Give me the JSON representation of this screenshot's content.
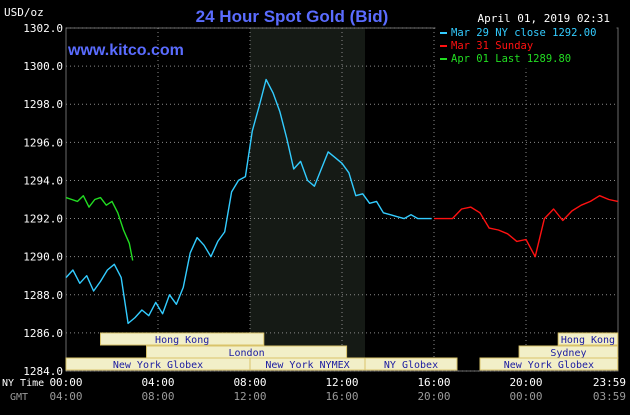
{
  "header": {
    "title": "24 Hour Spot Gold (Bid)",
    "date": "April 01, 2019 02:31",
    "units": "USD/oz",
    "site": "www.kitco.com"
  },
  "colors": {
    "title": "#5a6cff",
    "ny_close": "#33ccff",
    "sunday": "#ff1111",
    "last": "#22dd22",
    "session_fill": "#f2efc8",
    "night_band": "#151a15"
  },
  "legend": [
    {
      "label": "Mar 29 NY close 1292.00",
      "color_key": "ny_close"
    },
    {
      "label": "Mar 31 Sunday",
      "color_key": "sunday"
    },
    {
      "label": "Apr 01 Last 1289.80",
      "color_key": "last"
    }
  ],
  "time_axis": {
    "row1_label": "NY Time",
    "row2_label": "GMT",
    "ny_ticks": [
      "00:00",
      "04:00",
      "08:00",
      "12:00",
      "16:00",
      "20:00",
      "23:59"
    ],
    "gmt_ticks": [
      "04:00",
      "08:00",
      "12:00",
      "16:00",
      "20:00",
      "00:00",
      "03:59"
    ]
  },
  "sessions": {
    "row1": [
      {
        "label": "Hong Kong",
        "start": 1.5,
        "end": 8.6
      },
      {
        "label": "Hong Kong",
        "start": 21.4,
        "end": 23.99
      }
    ],
    "row2": [
      {
        "label": "London",
        "start": 3.5,
        "end": 12.2
      },
      {
        "label": "Sydney",
        "start": 19.7,
        "end": 23.99
      }
    ],
    "row3": [
      {
        "label": "New York Globex",
        "start": 0.0,
        "end": 8.0
      },
      {
        "label": "New York NYMEX",
        "start": 8.0,
        "end": 13.0
      },
      {
        "label": "NY Globex",
        "start": 13.0,
        "end": 17.0
      },
      {
        "label": "New York Globex",
        "start": 18.0,
        "end": 23.99
      }
    ]
  },
  "chart_data": {
    "type": "line",
    "title": "24 Hour Spot Gold (Bid)",
    "ylabel": "USD/oz",
    "xlabel": "NY Time",
    "ylim": [
      1284.0,
      1302.0
    ],
    "xlim": [
      0,
      24
    ],
    "y_ticks": [
      "1284.0",
      "1286.0",
      "1288.0",
      "1290.0",
      "1292.0",
      "1294.0",
      "1296.0",
      "1298.0",
      "1300.0",
      "1302.0"
    ],
    "grid": true,
    "legend_position": "top-right",
    "highlight_band": {
      "start": 8.0,
      "end": 13.0
    },
    "series": [
      {
        "name": "Mar 29 NY close 1292.00",
        "color_key": "ny_close",
        "x": [
          0.0,
          0.3,
          0.6,
          0.9,
          1.2,
          1.5,
          1.8,
          2.1,
          2.4,
          2.7,
          3.0,
          3.3,
          3.6,
          3.9,
          4.2,
          4.5,
          4.8,
          5.1,
          5.4,
          5.7,
          6.0,
          6.3,
          6.6,
          6.9,
          7.2,
          7.5,
          7.8,
          8.1,
          8.4,
          8.7,
          9.0,
          9.3,
          9.6,
          9.9,
          10.2,
          10.5,
          10.8,
          11.1,
          11.4,
          11.7,
          12.0,
          12.3,
          12.6,
          12.9,
          13.2,
          13.5,
          13.8,
          14.1,
          14.4,
          14.7,
          15.0,
          15.3,
          15.6,
          15.9
        ],
        "values": [
          1288.9,
          1289.3,
          1288.6,
          1289.0,
          1288.2,
          1288.7,
          1289.3,
          1289.6,
          1288.9,
          1286.5,
          1286.8,
          1287.2,
          1286.9,
          1287.6,
          1287.0,
          1288.0,
          1287.5,
          1288.4,
          1290.2,
          1291.0,
          1290.6,
          1290.0,
          1290.8,
          1291.3,
          1293.4,
          1294.0,
          1294.2,
          1296.6,
          1297.9,
          1299.3,
          1298.6,
          1297.6,
          1296.2,
          1294.6,
          1295.0,
          1294.0,
          1293.7,
          1294.6,
          1295.5,
          1295.2,
          1294.9,
          1294.4,
          1293.2,
          1293.3,
          1292.8,
          1292.9,
          1292.3,
          1292.2,
          1292.1,
          1292.0,
          1292.2,
          1292.0,
          1292.0,
          1292.0
        ]
      },
      {
        "name": "Mar 31 Sunday",
        "color_key": "sunday",
        "x": [
          16.0,
          16.4,
          16.8,
          17.2,
          17.6,
          18.0,
          18.4,
          18.8,
          19.2,
          19.6,
          20.0,
          20.4,
          20.8,
          21.2,
          21.6,
          22.0,
          22.4,
          22.8,
          23.2,
          23.6,
          23.99
        ],
        "values": [
          1292.0,
          1292.0,
          1292.0,
          1292.5,
          1292.6,
          1292.3,
          1291.5,
          1291.4,
          1291.2,
          1290.8,
          1290.9,
          1290.0,
          1292.0,
          1292.5,
          1291.9,
          1292.4,
          1292.7,
          1292.9,
          1293.2,
          1293.0,
          1292.9
        ]
      },
      {
        "name": "Apr 01 Last 1289.80",
        "color_key": "last",
        "x": [
          0.0,
          0.25,
          0.5,
          0.75,
          1.0,
          1.25,
          1.5,
          1.75,
          2.0,
          2.25,
          2.5,
          2.75,
          2.9
        ],
        "values": [
          1293.1,
          1293.0,
          1292.9,
          1293.2,
          1292.6,
          1293.0,
          1293.1,
          1292.7,
          1292.9,
          1292.3,
          1291.4,
          1290.7,
          1289.8
        ]
      }
    ]
  }
}
